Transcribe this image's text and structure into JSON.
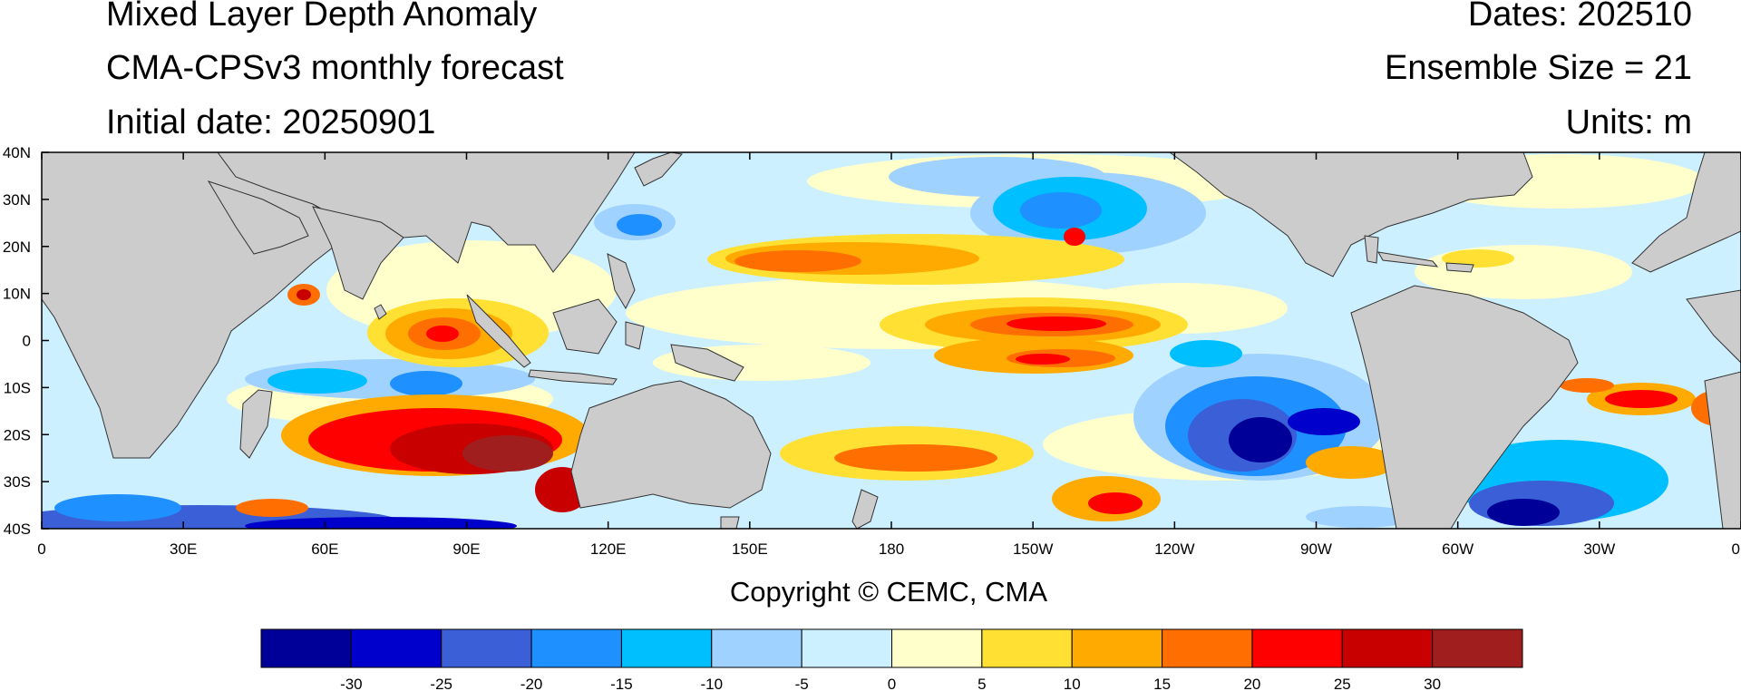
{
  "header": {
    "title": "Mixed Layer Depth Anomaly",
    "subtitle": "CMA-CPSv3 monthly forecast",
    "initial_date": "Initial date: 20250901",
    "dates": "Dates: 202510",
    "ensemble": "Ensemble Size = 21",
    "units": "Units: m"
  },
  "map": {
    "lon_range": [
      0,
      360
    ],
    "lat_range": [
      -40,
      40
    ],
    "x_ticks": [
      "0",
      "30E",
      "60E",
      "90E",
      "120E",
      "150E",
      "180",
      "150W",
      "120W",
      "90W",
      "60W",
      "30W",
      "0"
    ],
    "y_ticks": [
      "40N",
      "30N",
      "20N",
      "10N",
      "0",
      "10S",
      "20S",
      "30S",
      "40S"
    ],
    "land_color": "#cccccc",
    "ocean_base_color": "#ccf0ff"
  },
  "colorbar": {
    "colors": [
      "#000099",
      "#0000cc",
      "#3a5fd6",
      "#1e90ff",
      "#00bfff",
      "#a0d2ff",
      "#ccf0ff",
      "#ffffcc",
      "#ffe033",
      "#ffaa00",
      "#ff6e00",
      "#ff0000",
      "#c80000",
      "#a01e1e"
    ],
    "labels": [
      "-30",
      "-25",
      "-20",
      "-15",
      "-10",
      "-5",
      "0",
      "5",
      "10",
      "15",
      "20",
      "25",
      "30"
    ]
  },
  "copyright": "Copyright © CEMC, CMA"
}
